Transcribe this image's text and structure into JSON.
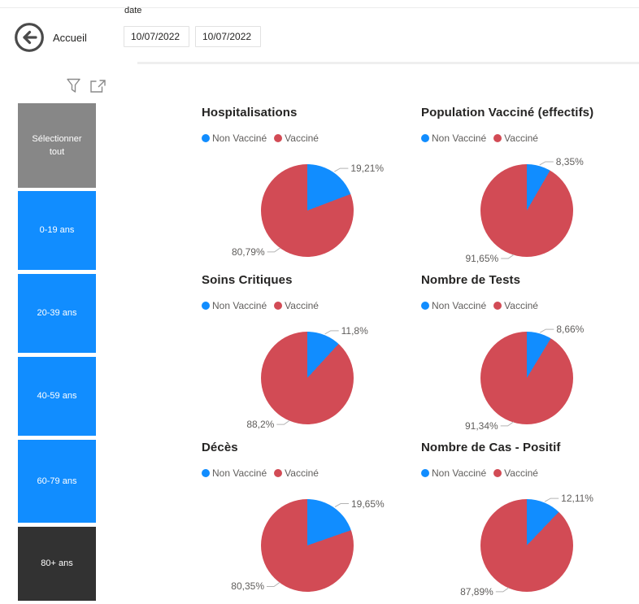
{
  "header": {
    "back_label": "Accueil",
    "date_label": "date",
    "date_start": "10/07/2022",
    "date_end": "10/07/2022"
  },
  "icons": {
    "back": "back-arrow-circle-icon",
    "filter": "filter-funnel-icon",
    "expand": "focus-mode-icon",
    "legend_marker": "dot-icon"
  },
  "colors": {
    "pie_blue": "#118DFF",
    "pie_red": "#D24B55",
    "slicer_blue": "#118DFF",
    "slicer_gray": "#878787",
    "slicer_dark": "#323232",
    "title_text": "#252423",
    "label_text": "#605E5C",
    "leader_line": "#b3b3b3"
  },
  "sidebar": {
    "buttons": [
      {
        "label": "Sélectionner tout",
        "color": "gray"
      },
      {
        "label": "0-19 ans",
        "color": "blue"
      },
      {
        "label": "20-39 ans",
        "color": "blue"
      },
      {
        "label": "40-59 ans",
        "color": "blue"
      },
      {
        "label": "60-79 ans",
        "color": "blue"
      },
      {
        "label": "80+ ans",
        "color": "dark"
      }
    ]
  },
  "chart_data": [
    {
      "type": "pie",
      "title": "Hospitalisations",
      "legend": [
        "Non Vacciné",
        "Vacciné"
      ],
      "slices": [
        {
          "name": "Non Vacciné",
          "value": 19.21,
          "label": "19,21%"
        },
        {
          "name": "Vacciné",
          "value": 80.79,
          "label": "80,79%"
        }
      ]
    },
    {
      "type": "pie",
      "title": "Population Vacciné (effectifs)",
      "legend": [
        "Non Vacciné",
        "Vacciné"
      ],
      "slices": [
        {
          "name": "Non Vacciné",
          "value": 8.35,
          "label": "8,35%"
        },
        {
          "name": "Vacciné",
          "value": 91.65,
          "label": "91,65%"
        }
      ]
    },
    {
      "type": "pie",
      "title": "Soins Critiques",
      "legend": [
        "Non Vacciné",
        "Vacciné"
      ],
      "slices": [
        {
          "name": "Non Vacciné",
          "value": 11.8,
          "label": "11,8%"
        },
        {
          "name": "Vacciné",
          "value": 88.2,
          "label": "88,2%"
        }
      ]
    },
    {
      "type": "pie",
      "title": "Nombre de Tests",
      "legend": [
        "Non Vacciné",
        "Vacciné"
      ],
      "slices": [
        {
          "name": "Non Vacciné",
          "value": 8.66,
          "label": "8,66%"
        },
        {
          "name": "Vacciné",
          "value": 91.34,
          "label": "91,34%"
        }
      ]
    },
    {
      "type": "pie",
      "title": "Décès",
      "legend": [
        "Non Vacciné",
        "Vacciné"
      ],
      "slices": [
        {
          "name": "Non Vacciné",
          "value": 19.65,
          "label": "19,65%"
        },
        {
          "name": "Vacciné",
          "value": 80.35,
          "label": "80,35%"
        }
      ]
    },
    {
      "type": "pie",
      "title": "Nombre de Cas - Positif",
      "legend": [
        "Non Vacciné",
        "Vacciné"
      ],
      "slices": [
        {
          "name": "Non Vacciné",
          "value": 12.11,
          "label": "12,11%"
        },
        {
          "name": "Vacciné",
          "value": 87.89,
          "label": "87,89%"
        }
      ]
    }
  ]
}
